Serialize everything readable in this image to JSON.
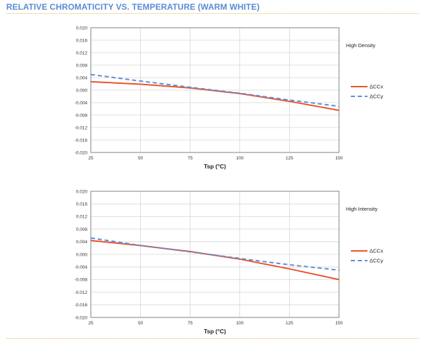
{
  "header": {
    "title": "RELATIVE CHROMATICITY VS. TEMPERATURE (WARM WHITE)"
  },
  "colors": {
    "ccx": "#e8542b",
    "ccy": "#5f8ed6",
    "grid": "#d6d6d6",
    "frame": "#777777",
    "accent_rule": "#e3c14a"
  },
  "chart_data": [
    {
      "type": "line",
      "title": "",
      "side_label": "High Density",
      "xlabel": "Tsp (°C)",
      "ylabel": "",
      "xlim": [
        25,
        150
      ],
      "ylim": [
        -0.02,
        0.02
      ],
      "xticks": [
        "25",
        "50",
        "75",
        "100",
        "125",
        "150"
      ],
      "yticks": [
        "0.020",
        "0.016",
        "0.012",
        "0.008",
        "0.004",
        "0.000",
        "-0.004",
        "-0.008",
        "-0.012",
        "-0.016",
        "-0.020"
      ],
      "grid": true,
      "legend_position": "right",
      "x": [
        25,
        50,
        75,
        100,
        125,
        150
      ],
      "series": [
        {
          "name": "ΔCCx",
          "values": [
            0.0027,
            0.0019,
            0.0007,
            -0.0011,
            -0.0036,
            -0.0065
          ],
          "style": "solid"
        },
        {
          "name": "ΔCCy",
          "values": [
            0.005,
            0.0029,
            0.0009,
            -0.001,
            -0.0032,
            -0.0052
          ],
          "style": "dashed"
        }
      ]
    },
    {
      "type": "line",
      "title": "",
      "side_label": "High Intensity",
      "xlabel": "Tsp (°C)",
      "ylabel": "",
      "xlim": [
        25,
        150
      ],
      "ylim": [
        -0.02,
        0.02
      ],
      "xticks": [
        "25",
        "50",
        "75",
        "100",
        "125",
        "150"
      ],
      "yticks": [
        "0.020",
        "0.016",
        "0.012",
        "0.008",
        "0.004",
        "0.000",
        "-0.004",
        "-0.008",
        "-0.012",
        "-0.016",
        "-0.020"
      ],
      "grid": true,
      "legend_position": "right",
      "x": [
        25,
        50,
        75,
        100,
        125,
        150
      ],
      "series": [
        {
          "name": "ΔCCx",
          "values": [
            0.0044,
            0.0028,
            0.0009,
            -0.0015,
            -0.0046,
            -0.008
          ],
          "style": "solid"
        },
        {
          "name": "ΔCCy",
          "values": [
            0.0052,
            0.0028,
            0.0008,
            -0.0013,
            -0.0033,
            -0.005
          ],
          "style": "dashed"
        }
      ]
    }
  ]
}
